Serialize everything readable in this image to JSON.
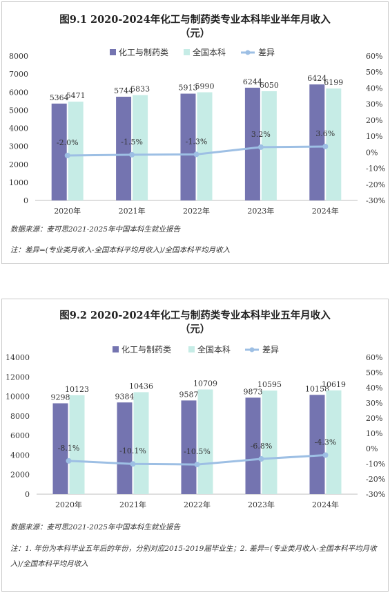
{
  "chart_data": [
    {
      "type": "bar+line",
      "title": [
        "图9.1 2020-2024年化工与制药类专业本科毕业半年月收入",
        "（元）"
      ],
      "categories": [
        "2020年",
        "2021年",
        "2022年",
        "2023年",
        "2024年"
      ],
      "series": [
        {
          "name": "化工与制药类",
          "kind": "bar",
          "color": "#7474b0",
          "values": [
            5364,
            5744,
            5913,
            6244,
            6424
          ]
        },
        {
          "name": "全国本科",
          "kind": "bar",
          "color": "#c6ece6",
          "values": [
            5471,
            5833,
            5990,
            6050,
            6199
          ]
        },
        {
          "name": "差异",
          "kind": "line",
          "axis": "right",
          "color": "#9dbfe4",
          "values": [
            -2.0,
            -1.5,
            -1.3,
            3.2,
            3.6
          ],
          "labels": [
            "-2.0%",
            "-1.5%",
            "-1.3%",
            "3.2%",
            "3.6%"
          ]
        }
      ],
      "y_left": {
        "min": 0,
        "max": 8000,
        "step": 1000,
        "ticks": [
          "0",
          "1000",
          "2000",
          "3000",
          "4000",
          "5000",
          "6000",
          "7000",
          "8000"
        ]
      },
      "y_right": {
        "min": -30,
        "max": 60,
        "step": 10,
        "ticks": [
          "-30%",
          "-20%",
          "-10%",
          "0%",
          "10%",
          "20%",
          "30%",
          "40%",
          "50%",
          "60%"
        ]
      },
      "legend_position": "top",
      "grid": false,
      "notes": [
        "数据来源：麦可思2021-2025年中国本科生就业报告",
        "注：差异=(专业类月收入-全国本科平均月收入)/全国本科平均月收入"
      ]
    },
    {
      "type": "bar+line",
      "title": [
        "图9.2 2020-2024年化工与制药类专业本科毕业五年月收入",
        "（元）"
      ],
      "categories": [
        "2020年",
        "2021年",
        "2022年",
        "2023年",
        "2024年"
      ],
      "series": [
        {
          "name": "化工与制药类",
          "kind": "bar",
          "color": "#7474b0",
          "values": [
            9298,
            9384,
            9587,
            9873,
            10158
          ]
        },
        {
          "name": "全国本科",
          "kind": "bar",
          "color": "#c6ece6",
          "values": [
            10123,
            10436,
            10709,
            10595,
            10619
          ]
        },
        {
          "name": "差异",
          "kind": "line",
          "axis": "right",
          "color": "#9dbfe4",
          "values": [
            -8.1,
            -10.1,
            -10.5,
            -6.8,
            -4.3
          ],
          "labels": [
            "-8.1%",
            "-10.1%",
            "-10.5%",
            "-6.8%",
            "-4.3%"
          ]
        }
      ],
      "y_left": {
        "min": 0,
        "max": 14000,
        "step": 2000,
        "ticks": [
          "0",
          "2000",
          "4000",
          "6000",
          "8000",
          "10000",
          "12000",
          "14000"
        ]
      },
      "y_right": {
        "min": -30,
        "max": 60,
        "step": 10,
        "ticks": [
          "-30%",
          "-20%",
          "-10%",
          "0%",
          "10%",
          "20%",
          "30%",
          "40%",
          "50%",
          "60%"
        ]
      },
      "legend_position": "top",
      "grid": false,
      "notes": [
        "数据来源：麦可思2021-2025年中国本科生就业报告",
        "注：1. 年份为本科毕业五年后的年份，分别对应2015-2019届毕业生；2. 差异=(专业类月收入-全国本科平均月收入)/全国本科平均月收入"
      ]
    }
  ]
}
